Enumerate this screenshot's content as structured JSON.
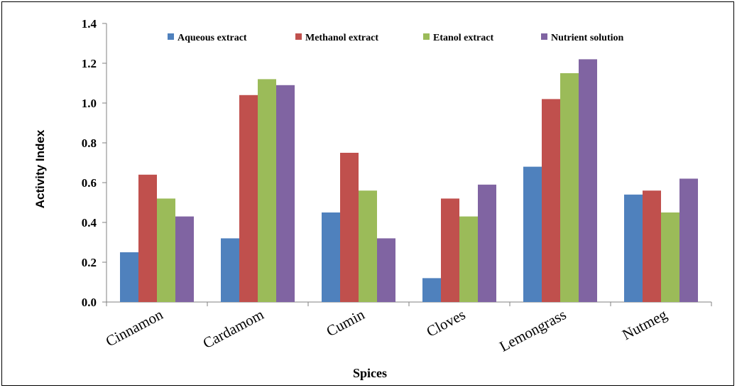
{
  "chart_data": {
    "type": "bar",
    "title": "",
    "xlabel": "Spices",
    "ylabel": "Activity Index",
    "ylim": [
      0,
      1.4
    ],
    "yticks": [
      "0.0",
      "0.2",
      "0.4",
      "0.6",
      "0.8",
      "1.0",
      "1.2",
      "1.4"
    ],
    "grid": false,
    "legend_position": "top",
    "categories": [
      "Cinnamon",
      "Cardamom",
      "Cumin",
      "Cloves",
      "Lemongrass",
      "Nutmeg"
    ],
    "series": [
      {
        "name": "Aqueous extract",
        "color": "#4F81BD",
        "values": [
          0.25,
          0.32,
          0.45,
          0.12,
          0.68,
          0.54
        ]
      },
      {
        "name": "Methanol extract",
        "color": "#C0504D",
        "values": [
          0.64,
          1.04,
          0.75,
          0.52,
          1.02,
          0.56
        ]
      },
      {
        "name": "Etanol extract",
        "color": "#9BBB59",
        "values": [
          0.52,
          1.12,
          0.56,
          0.43,
          1.15,
          0.45
        ]
      },
      {
        "name": "Nutrient solution",
        "color": "#8064A2",
        "values": [
          0.43,
          1.09,
          0.32,
          0.59,
          1.22,
          0.62
        ]
      }
    ]
  }
}
